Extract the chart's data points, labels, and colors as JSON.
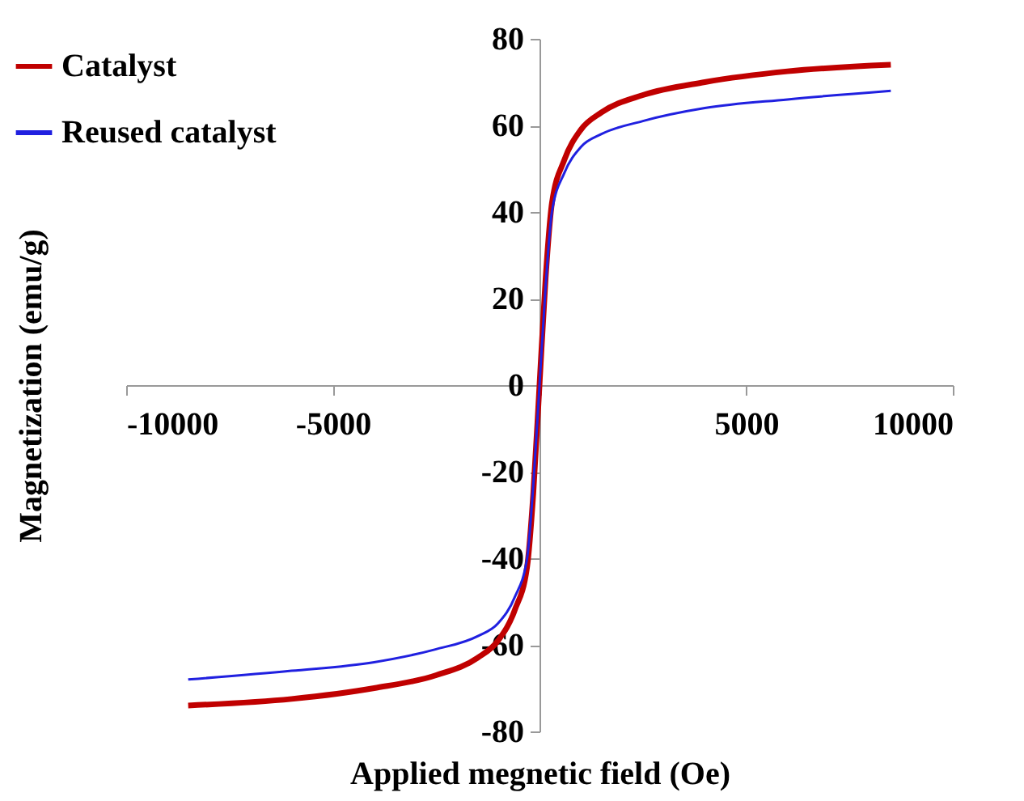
{
  "chart_data": {
    "type": "line",
    "xlabel": "Applied  megnetic field (Oe)",
    "ylabel": "Magnetization (emu/g)",
    "xlim": [
      -10000,
      10000
    ],
    "xticks": [
      -10000,
      -5000,
      {
        "value": 0,
        "label": null
      },
      5000,
      10000
    ],
    "ylim": [
      -80,
      80
    ],
    "yticks": [
      -80,
      -60,
      -40,
      -20,
      0,
      20,
      40,
      60,
      80
    ],
    "grid": false,
    "legend": "top left",
    "marker": "none",
    "line_style": "solid",
    "series": [
      {
        "name": "Catalyst",
        "color": "#c00000",
        "x": [
          -8500,
          -6000,
          -4000,
          -2500,
          -1500,
          -1000,
          -600,
          -300,
          -150,
          0,
          150,
          300,
          600,
          1000,
          1500,
          2500,
          4000,
          6000,
          8500
        ],
        "values": [
          -74,
          -72.5,
          -70,
          -67,
          -63,
          -59,
          -52,
          -42,
          -25,
          0,
          25,
          42,
          52,
          59,
          63,
          67,
          70,
          72.5,
          74
        ]
      },
      {
        "name": "Reused catalyst",
        "color": "#2020e0",
        "x": [
          -8500,
          -6000,
          -4000,
          -2500,
          -1500,
          -1000,
          -600,
          -300,
          -150,
          0,
          150,
          300,
          600,
          1000,
          1500,
          2500,
          4000,
          6000,
          8500
        ],
        "values": [
          -68,
          -66,
          -64,
          -61,
          -58,
          -55,
          -49,
          -40,
          -23,
          0,
          23,
          40,
          49,
          55,
          58,
          61,
          64,
          66,
          68
        ]
      }
    ]
  }
}
